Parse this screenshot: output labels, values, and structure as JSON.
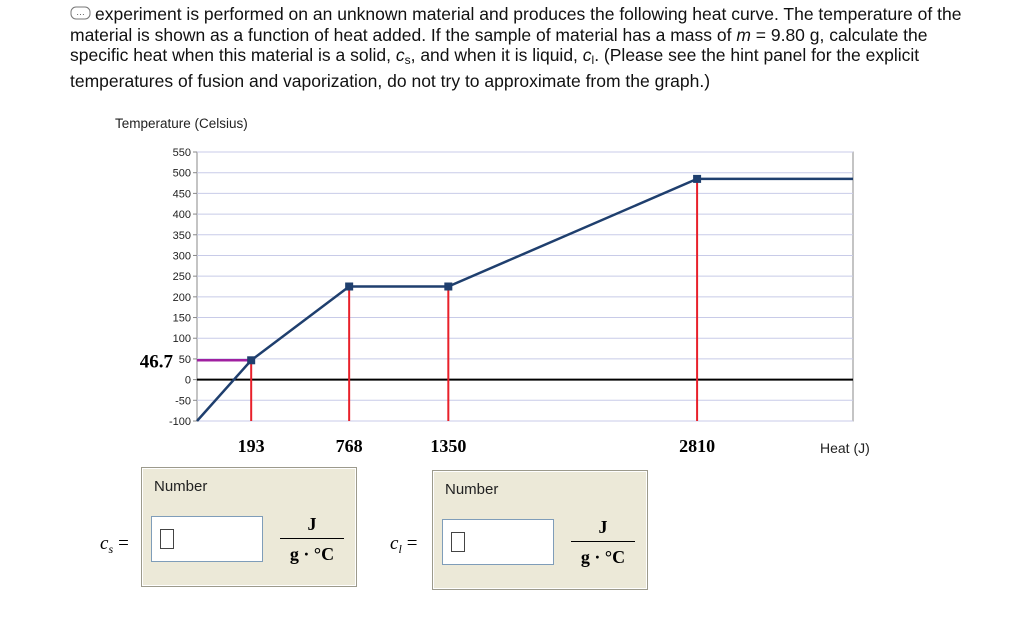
{
  "problem": {
    "segments": [
      {
        "text": "experiment is performed on an unknown material and produces the following heat curve. The temperature of the material is shown as a function of heat added. If the sample of material has a mass of ",
        "style": "normal"
      },
      {
        "text": "m",
        "style": "italic"
      },
      {
        "text": " = 9.80 g, calculate the specific heat when this material is a solid, ",
        "style": "normal"
      },
      {
        "text": "c",
        "style": "italic"
      },
      {
        "text": "s",
        "style": "sub"
      },
      {
        "text": ", and when it is liquid, ",
        "style": "normal"
      },
      {
        "text": "c",
        "style": "italic"
      },
      {
        "text": "l",
        "style": "sub"
      },
      {
        "text": ". (Please see the hint panel for the explicit temperatures of fusion and vaporization, do not try to approximate from the graph.)",
        "style": "normal"
      }
    ]
  },
  "chart_data": {
    "type": "line",
    "ylabel": "Temperature (Celsius)",
    "xlabel": "Heat (J)",
    "x": [
      -125,
      193,
      768,
      1350,
      2810,
      3725
    ],
    "values": [
      -100,
      46.7,
      225,
      225,
      485,
      485
    ],
    "color": "#1f3f6e",
    "drop_line_color": "#e8202a",
    "level_line_color": "#a020a0",
    "xlim": [
      -125,
      3725
    ],
    "ylim": [
      -100,
      550
    ],
    "yticks": [
      -100,
      -50,
      0,
      50,
      100,
      150,
      200,
      250,
      300,
      350,
      400,
      450,
      500,
      550
    ],
    "grid": true
  },
  "answers": [
    {
      "symbol": "c",
      "subscript": "s",
      "equals": "=",
      "input_label": "Number",
      "unit_numerator": "J",
      "unit_denominator": "g · °C"
    },
    {
      "symbol": "c",
      "subscript": "l",
      "equals": "=",
      "input_label": "Number",
      "unit_numerator": "J",
      "unit_denominator": "g · °C"
    }
  ]
}
